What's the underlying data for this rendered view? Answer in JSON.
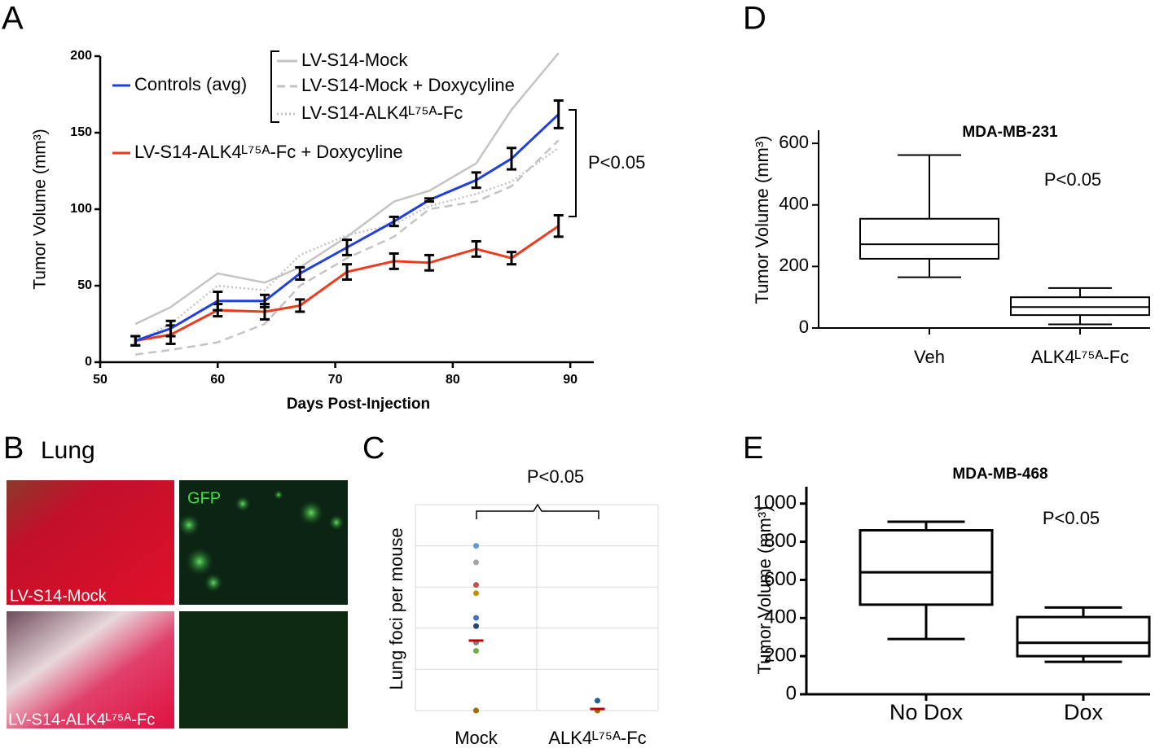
{
  "chart_data": [
    {
      "type": "line",
      "panel": "A",
      "xlabel": "Days Post-Injection",
      "ylabel": "Tumor Volume (mm³)",
      "x": [
        53,
        56,
        60,
        64,
        67,
        71,
        75,
        78,
        82,
        85,
        89
      ],
      "xlim": [
        50,
        92
      ],
      "xticks": [
        50,
        60,
        70,
        80,
        90
      ],
      "ylim": [
        0,
        200
      ],
      "yticks": [
        0,
        50,
        100,
        150,
        200
      ],
      "series": [
        {
          "name": "Controls (avg)",
          "color": "#1f3fe0",
          "style": "solid",
          "values": [
            14,
            22,
            40,
            40,
            58,
            75,
            92,
            106,
            119,
            133,
            162
          ],
          "errors": [
            3,
            5,
            6,
            4,
            4,
            5,
            3,
            1,
            5,
            7,
            9
          ]
        },
        {
          "name": "LV-S14-ALK4ᴸ⁷⁵ᴬ-Fc + Doxycyline",
          "color": "#f03a1e",
          "style": "solid",
          "values": [
            14,
            18,
            34,
            33,
            37,
            59,
            66,
            65,
            74,
            68,
            89
          ],
          "errors": [
            3,
            6,
            4,
            5,
            4,
            5,
            5,
            5,
            5,
            4,
            7
          ]
        },
        {
          "name": "LV-S14-Mock",
          "color": "#c4c4c4",
          "style": "solid",
          "values": [
            25,
            36,
            58,
            52,
            62,
            82,
            105,
            112,
            130,
            165,
            202
          ]
        },
        {
          "name": "LV-S14-Mock + Doxycyline",
          "color": "#c4c4c4",
          "style": "dashed",
          "values": [
            5,
            8,
            13,
            25,
            50,
            68,
            82,
            100,
            105,
            115,
            145
          ]
        },
        {
          "name": "LV-S14-ALK4ᴸ⁷⁵ᴬ-Fc",
          "color": "#c4c4c4",
          "style": "dotted",
          "values": [
            13,
            25,
            50,
            47,
            70,
            83,
            90,
            102,
            110,
            118,
            140
          ]
        }
      ],
      "annotation": "P<0.05"
    },
    {
      "type": "dot",
      "panel": "C",
      "ylabel": "Lung foci per mouse",
      "categories": [
        "Mock",
        "ALK4ᴸ⁷⁵ᴬ-Fc"
      ],
      "ylim": [
        0,
        5
      ],
      "yticks": [
        0,
        1,
        2,
        3,
        4,
        5
      ],
      "grid": true,
      "ytick_labels": false,
      "points": [
        [
          4.0,
          3.6,
          3.05,
          2.85,
          2.25,
          2.05,
          1.65,
          1.45,
          0
        ],
        [
          0.24,
          0
        ]
      ],
      "point_colors": [
        [
          "#5b9bd5",
          "#a5a5a5",
          "#c0504d",
          "#bf9000",
          "#4472c4",
          "#264478",
          "#7f7f7f",
          "#70ad47",
          "#9e6b00"
        ],
        [
          "#255e91",
          "#9e6b00"
        ]
      ],
      "means": [
        1.7,
        0.04
      ],
      "mean_color": "#c00000",
      "annotation": "P<0.05"
    },
    {
      "type": "box",
      "panel": "D",
      "title": "MDA-MB-231",
      "ylabel": "Tumor Volume (mm³)",
      "categories": [
        "Veh",
        "ALK4ᴸ⁷⁵ᴬ-Fc"
      ],
      "ylim": [
        0,
        640
      ],
      "yticks": [
        0,
        200,
        400,
        600
      ],
      "boxes": [
        {
          "min": 165,
          "q1": 225,
          "median": 272,
          "q3": 355,
          "max": 562
        },
        {
          "min": 12,
          "q1": 42,
          "median": 68,
          "q3": 100,
          "max": 130
        }
      ],
      "annotation": "P<0.05"
    },
    {
      "type": "box",
      "panel": "E",
      "title": "MDA-MB-468",
      "ylabel": "Tumor Volume (mm³)",
      "categories": [
        "No Dox",
        "Dox"
      ],
      "ylim": [
        0,
        1080
      ],
      "yticks": [
        0,
        200,
        400,
        600,
        800,
        1000
      ],
      "boxes": [
        {
          "min": 290,
          "q1": 470,
          "median": 640,
          "q3": 860,
          "max": 905
        },
        {
          "min": 170,
          "q1": 200,
          "median": 270,
          "q3": 405,
          "max": 455
        }
      ],
      "annotation": "P<0.05"
    }
  ],
  "panel_b": {
    "panel": "B",
    "title": "Lung",
    "channel": "GFP",
    "rows": [
      "LV-S14-Mock",
      "LV-S14-ALK4ᴸ⁷⁵ᴬ-Fc"
    ]
  }
}
